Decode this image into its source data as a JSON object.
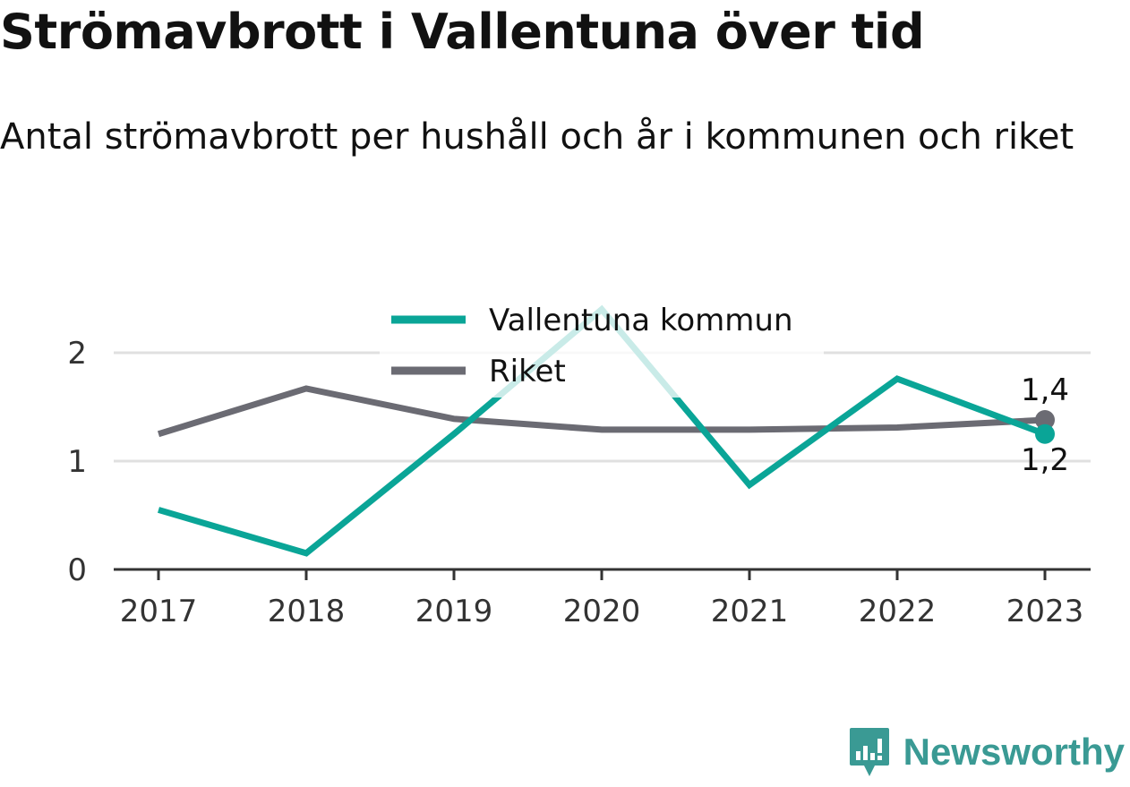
{
  "title": "Strömavbrott i Vallentuna över tid",
  "subtitle": "Antal strömavbrott per hushåll och år i kommunen och riket",
  "brand": "Newsworthy",
  "colors": {
    "vallentuna": "#0aa597",
    "riket": "#6b6b73",
    "grid": "#e0e0e0",
    "axis": "#333333",
    "brand": "#3a9a94"
  },
  "chart_data": {
    "type": "line",
    "x": [
      "2017",
      "2018",
      "2019",
      "2020",
      "2021",
      "2022",
      "2023"
    ],
    "ylim": [
      0,
      2.4
    ],
    "yticks": [
      {
        "value": 0,
        "label": "0"
      },
      {
        "value": 1,
        "label": "1"
      },
      {
        "value": 2,
        "label": "2"
      }
    ],
    "grid": true,
    "legend": "top-center",
    "series": [
      {
        "name": "Vallentuna kommun",
        "key": "vallentuna",
        "values": [
          0.55,
          0.15,
          1.25,
          2.4,
          0.78,
          1.76,
          1.25
        ],
        "end_label": "1,2"
      },
      {
        "name": "Riket",
        "key": "riket",
        "values": [
          1.25,
          1.67,
          1.39,
          1.29,
          1.29,
          1.31,
          1.38
        ],
        "end_label": "1,4"
      }
    ]
  }
}
